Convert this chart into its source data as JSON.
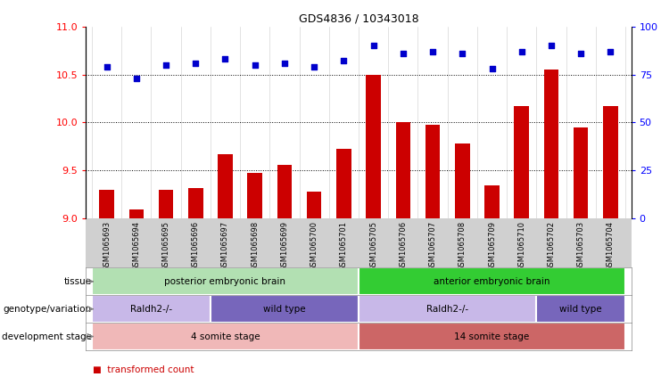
{
  "title": "GDS4836 / 10343018",
  "samples": [
    "GSM1065693",
    "GSM1065694",
    "GSM1065695",
    "GSM1065696",
    "GSM1065697",
    "GSM1065698",
    "GSM1065699",
    "GSM1065700",
    "GSM1065701",
    "GSM1065705",
    "GSM1065706",
    "GSM1065707",
    "GSM1065708",
    "GSM1065709",
    "GSM1065710",
    "GSM1065702",
    "GSM1065703",
    "GSM1065704"
  ],
  "transformed_count": [
    9.3,
    9.1,
    9.3,
    9.32,
    9.67,
    9.48,
    9.56,
    9.28,
    9.73,
    10.5,
    10.0,
    9.98,
    9.78,
    9.35,
    10.17,
    10.55,
    9.95,
    10.17
  ],
  "percentile_rank": [
    79,
    73,
    80,
    81,
    83,
    80,
    81,
    79,
    82,
    90,
    86,
    87,
    86,
    78,
    87,
    90,
    86,
    87
  ],
  "ylim_left": [
    9.0,
    11.0
  ],
  "ylim_right": [
    0,
    100
  ],
  "yticks_left": [
    9.0,
    9.5,
    10.0,
    10.5,
    11.0
  ],
  "yticks_right": [
    0,
    25,
    50,
    75,
    100
  ],
  "bar_color": "#cc0000",
  "dot_color": "#0000cc",
  "tissue_groups": [
    {
      "label": "posterior embryonic brain",
      "start": 0,
      "end": 9,
      "color": "#b2e0b2"
    },
    {
      "label": "anterior embryonic brain",
      "start": 9,
      "end": 18,
      "color": "#33cc33"
    }
  ],
  "genotype_groups": [
    {
      "label": "Raldh2-/-",
      "start": 0,
      "end": 4,
      "color": "#c8b8e8"
    },
    {
      "label": "wild type",
      "start": 4,
      "end": 9,
      "color": "#7766bb"
    },
    {
      "label": "Raldh2-/-",
      "start": 9,
      "end": 15,
      "color": "#c8b8e8"
    },
    {
      "label": "wild type",
      "start": 15,
      "end": 18,
      "color": "#7766bb"
    }
  ],
  "dev_stage_groups": [
    {
      "label": "4 somite stage",
      "start": 0,
      "end": 9,
      "color": "#f0b8b8"
    },
    {
      "label": "14 somite stage",
      "start": 9,
      "end": 18,
      "color": "#cc6666"
    }
  ],
  "bg_color": "#ffffff",
  "grid_color": "#bbbbbb",
  "tick_area_color": "#d0d0d0"
}
